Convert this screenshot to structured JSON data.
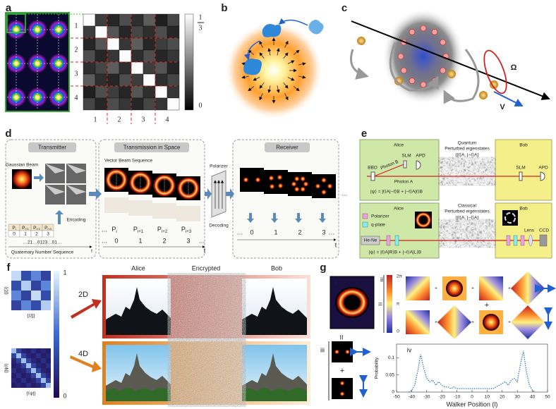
{
  "panels": {
    "a": {
      "label": "a",
      "row_labels": [
        "1",
        "2",
        "3",
        "4"
      ],
      "col_labels": [
        "1",
        "2",
        "3",
        "4"
      ],
      "colorbar": {
        "max_numerator": "1",
        "max_denominator": "3",
        "min": "0",
        "range": [
          0,
          0.3333
        ]
      },
      "matrix": [
        [
          0.33,
          0.08,
          0.05,
          0.1,
          0.06,
          0.12,
          0.04,
          0.09
        ],
        [
          0.08,
          0.33,
          0.11,
          0.05,
          0.09,
          0.06,
          0.1,
          0.05
        ],
        [
          0.05,
          0.11,
          0.33,
          0.07,
          0.12,
          0.05,
          0.08,
          0.1
        ],
        [
          0.1,
          0.05,
          0.07,
          0.33,
          0.06,
          0.1,
          0.05,
          0.07
        ],
        [
          0.06,
          0.09,
          0.12,
          0.06,
          0.33,
          0.08,
          0.11,
          0.05
        ],
        [
          0.12,
          0.06,
          0.05,
          0.1,
          0.08,
          0.33,
          0.06,
          0.09
        ],
        [
          0.04,
          0.1,
          0.08,
          0.05,
          0.11,
          0.06,
          0.33,
          0.07
        ],
        [
          0.09,
          0.05,
          0.1,
          0.07,
          0.05,
          0.09,
          0.07,
          0.33
        ]
      ]
    },
    "b": {
      "label": "b"
    },
    "c": {
      "label": "c",
      "omega": "Ω",
      "velocity": "V"
    },
    "d": {
      "label": "d",
      "transmitter": "Transmitter",
      "transmission": "Transmission in Space",
      "receiver": "Receiver",
      "gaussian_beam": "Gaussian Beam",
      "vector_beam_sequence": "Vector Beam Sequence",
      "polarizer": "Polarizer",
      "encoding": "Encoding",
      "decoding": "Decoding",
      "number_sequence": "…21…0123…01…",
      "sequence_caption": "Quaternary Number Sequence",
      "symbols": [
        {
          "main": "P",
          "sub": "i"
        },
        {
          "main": "P",
          "sub": "i+1"
        },
        {
          "main": "P",
          "sub": "i+2"
        },
        {
          "main": "P",
          "sub": "i+3"
        }
      ],
      "digits": [
        "0",
        "1",
        "2",
        "3"
      ],
      "ellipsis": "…",
      "time": "t"
    },
    "e": {
      "label": "e",
      "quantum": {
        "alice": "Alice",
        "title": "Quantum",
        "subtitle": "Perturbed eigenstates",
        "states": "{|ℓ⟩A, |−ℓ⟩A}",
        "bob": "Bob",
        "bbo": "BBO",
        "photon_b": "Photon B",
        "slm": "SLM",
        "apd": "APD",
        "photon_a": "Photon A",
        "bob_slm": "SLM",
        "bob_apd": "APD",
        "formula": "|ψ⟩ = |ℓ⟩A|−ℓ⟩B + |−ℓ⟩A|ℓ⟩B"
      },
      "classical": {
        "alice": "Alice",
        "title": "Classical",
        "subtitle": "Perturbed eigenstates",
        "states": "{|ℓ⟩A, |−ℓ⟩A}",
        "bob": "Bob",
        "polarizer": "Polarizer",
        "q_plate": "q-plate",
        "laser": "He-Ne",
        "lens": "Lens",
        "ccd": "CCD",
        "formula": "|ψ⟩ = |ℓ⟩A|R⟩B + |−ℓ⟩A|L⟩B"
      }
    },
    "f": {
      "label": "f",
      "alice": "Alice",
      "encrypted": "Encrypted",
      "bob": "Bob",
      "dim_2d": "2D",
      "dim_4d": "4D",
      "colorbar": {
        "max": "1",
        "min": "0",
        "range": [
          0,
          1
        ]
      },
      "top_y_label": "{|ξ⟩}",
      "top_x_label": "{⟨ξ|}",
      "bottom_y_label": "{|ψ⟩}",
      "bottom_x_label": "{⟨ψ|}",
      "matrix_2d": [
        [
          0.9,
          0.35,
          0.6,
          0.3
        ],
        [
          0.35,
          0.85,
          0.3,
          0.6
        ],
        [
          0.6,
          0.3,
          0.9,
          0.35
        ],
        [
          0.3,
          0.6,
          0.35,
          0.85
        ]
      ],
      "matrix_4d": [
        [
          0.8,
          0.3,
          0.15,
          0.1,
          0.2,
          0.1,
          0.15,
          0.1
        ],
        [
          0.3,
          0.8,
          0.3,
          0.15,
          0.1,
          0.2,
          0.1,
          0.15
        ],
        [
          0.15,
          0.3,
          0.8,
          0.3,
          0.15,
          0.1,
          0.2,
          0.1
        ],
        [
          0.1,
          0.15,
          0.3,
          0.8,
          0.3,
          0.15,
          0.1,
          0.2
        ],
        [
          0.2,
          0.1,
          0.15,
          0.3,
          0.8,
          0.3,
          0.15,
          0.1
        ],
        [
          0.1,
          0.2,
          0.1,
          0.15,
          0.3,
          0.8,
          0.3,
          0.15
        ],
        [
          0.15,
          0.1,
          0.2,
          0.1,
          0.15,
          0.3,
          0.8,
          0.3
        ],
        [
          0.1,
          0.15,
          0.1,
          0.2,
          0.1,
          0.15,
          0.3,
          0.8
        ]
      ]
    },
    "g": {
      "label": "g",
      "i": "i",
      "ii": "ii",
      "iii": "iii",
      "equals": "=",
      "plus": "+",
      "parallel": "II",
      "phase_max": "2π",
      "phase_mid": "π",
      "phase_min": "0",
      "iv": {
        "label": "iv",
        "xlabel": "Walker Position (l)",
        "ylabel": "Probability",
        "xlim": [
          -50,
          50
        ],
        "ylim": [
          0,
          0.14
        ],
        "xticks": [
          -50,
          -40,
          -30,
          -20,
          -10,
          0,
          10,
          20,
          30,
          40,
          50
        ],
        "yticks": [
          0,
          0.05,
          0.1
        ],
        "x": [
          -42,
          -40,
          -38,
          -36,
          -34,
          -32,
          -30,
          -28,
          -26,
          -24,
          -22,
          -20,
          -18,
          -16,
          -14,
          -12,
          -10,
          -8,
          -6,
          -4,
          -2,
          0,
          2,
          4,
          6,
          8,
          10,
          12,
          14,
          16,
          18,
          20,
          22,
          24,
          26,
          28,
          30,
          32,
          34,
          36,
          38,
          40,
          42
        ],
        "values": [
          0,
          0.005,
          0.02,
          0.06,
          0.11,
          0.07,
          0.04,
          0.03,
          0.035,
          0.02,
          0.03,
          0.02,
          0.015,
          0.015,
          0.01,
          0.015,
          0.01,
          0.01,
          0.01,
          0.01,
          0.01,
          0.01,
          0.01,
          0.01,
          0.01,
          0.01,
          0.01,
          0.01,
          0.01,
          0.015,
          0.02,
          0.025,
          0.03,
          0.02,
          0.035,
          0.04,
          0.03,
          0.08,
          0.12,
          0.06,
          0.02,
          0.005,
          0
        ],
        "color": "#2a6fb8"
      }
    }
  }
}
